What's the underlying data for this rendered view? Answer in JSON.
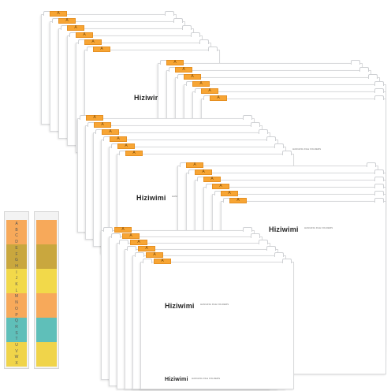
{
  "brand": {
    "name": "Hiziwimi",
    "sub_label": "HANGING FILE FOLDERS"
  },
  "tab_letter": "A",
  "tab_color": "#f7a534",
  "label_strip": {
    "letters": [
      "A",
      "B",
      "C",
      "D",
      "E",
      "F",
      "G",
      "H",
      "I",
      "J",
      "K",
      "L",
      "M",
      "N",
      "O",
      "P",
      "Q",
      "R",
      "S",
      "T",
      "U",
      "V",
      "W",
      "X"
    ],
    "bands": [
      {
        "color": "#f7a95a"
      },
      {
        "color": "#c9a73e"
      },
      {
        "color": "#f2d94a"
      },
      {
        "color": "#f7a95a"
      },
      {
        "color": "#5fbfb9"
      },
      {
        "color": "#f0d44a"
      }
    ]
  }
}
